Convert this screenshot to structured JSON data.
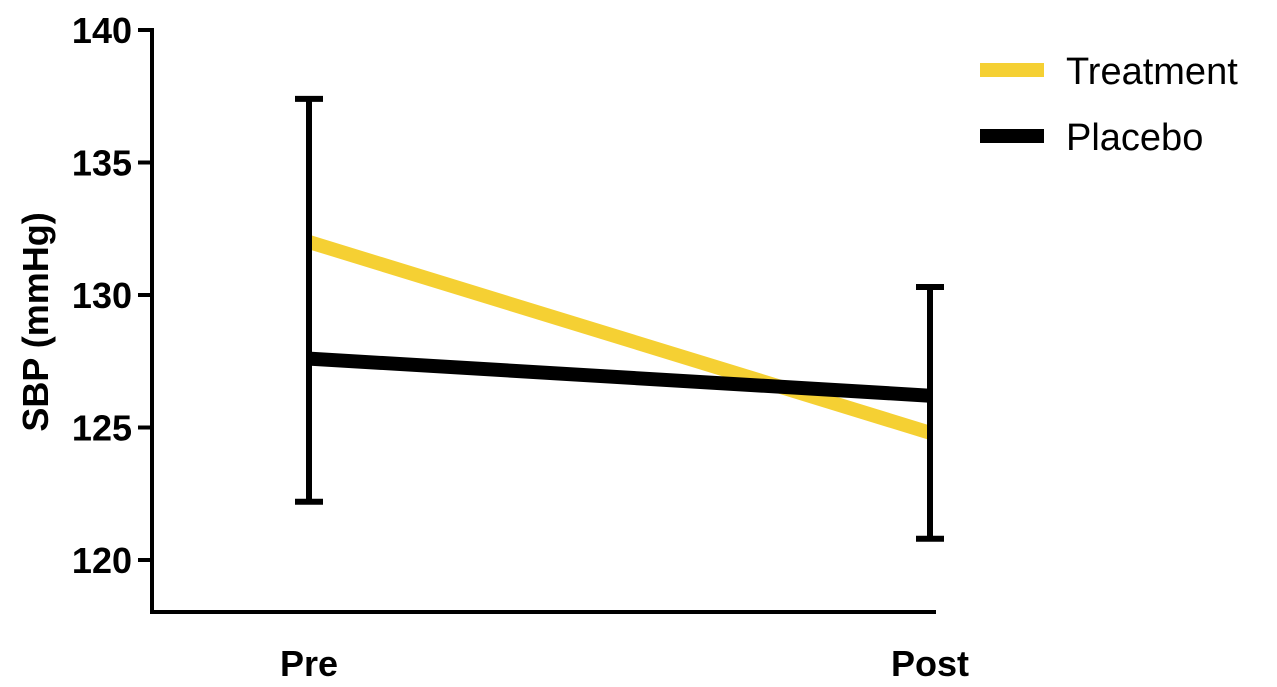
{
  "chart_data": {
    "type": "line",
    "title": "",
    "xlabel": "",
    "ylabel": "SBP (mmHg)",
    "categories": [
      "Pre",
      "Post"
    ],
    "ylim": [
      118,
      140
    ],
    "yticks": [
      120,
      125,
      130,
      135,
      140
    ],
    "yticklabels": [
      "120",
      "125",
      "130",
      "135",
      "140"
    ],
    "grid": false,
    "legend_position": "top-right",
    "series": [
      {
        "name": "Treatment",
        "color": "#F5D033",
        "values": [
          132,
          124.8
        ],
        "error_bars": false
      },
      {
        "name": "Placebo",
        "color": "#000000",
        "values": [
          127.6,
          126.2
        ],
        "error_low": [
          122.2,
          120.8
        ],
        "error_high": [
          137.4,
          130.3
        ],
        "error_bars": true
      }
    ]
  }
}
